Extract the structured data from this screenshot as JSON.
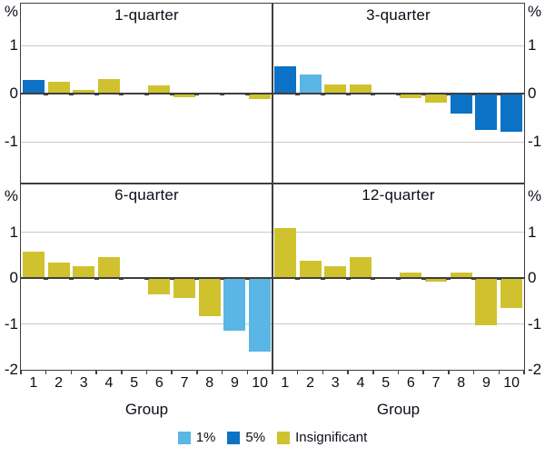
{
  "figure": {
    "y_axis_unit": "%",
    "x_axis_label": "Group",
    "x_tick_labels": [
      "1",
      "2",
      "3",
      "4",
      "5",
      "6",
      "7",
      "8",
      "9",
      "10"
    ],
    "colors": {
      "significance_1pct": "#5ab6e4",
      "significance_5pct": "#0c72c6",
      "insignificant": "#d0c22f",
      "gridline": "#c9c9c9",
      "axis": "#3f3f3f",
      "text": "#0d0d1a",
      "background": "#ffffff"
    },
    "legend": [
      {
        "label": "1%",
        "color_key": "significance_1pct"
      },
      {
        "label": "5%",
        "color_key": "significance_5pct"
      },
      {
        "label": "Insignificant",
        "color_key": "insignificant"
      }
    ]
  },
  "chart_data": [
    {
      "type": "bar",
      "title": "1-quarter",
      "position": "top-left",
      "xlabel": "Group",
      "ylabel": "%",
      "categories": [
        "1",
        "2",
        "3",
        "4",
        "5",
        "6",
        "7",
        "8",
        "9",
        "10"
      ],
      "values": [
        0.29,
        0.24,
        0.07,
        0.31,
        -0.01,
        0.17,
        -0.07,
        -0.02,
        -0.02,
        -0.11
      ],
      "significance": [
        "5%",
        "insignificant",
        "insignificant",
        "insignificant",
        "insignificant",
        "insignificant",
        "insignificant",
        "insignificant",
        "insignificant",
        "insignificant"
      ],
      "ylim": [
        -1.87,
        1.87
      ],
      "yticks": [
        1,
        0,
        -1
      ],
      "grid": true
    },
    {
      "type": "bar",
      "title": "3-quarter",
      "position": "top-right",
      "xlabel": "Group",
      "ylabel": "%",
      "categories": [
        "1",
        "2",
        "3",
        "4",
        "5",
        "6",
        "7",
        "8",
        "9",
        "10"
      ],
      "values": [
        0.57,
        0.4,
        0.18,
        0.18,
        -0.01,
        -0.09,
        -0.19,
        -0.42,
        -0.75,
        -0.8
      ],
      "significance": [
        "5%",
        "1%",
        "insignificant",
        "insignificant",
        "insignificant",
        "insignificant",
        "insignificant",
        "5%",
        "5%",
        "5%"
      ],
      "ylim": [
        -1.87,
        1.87
      ],
      "yticks": [
        1,
        0,
        -1
      ],
      "grid": true
    },
    {
      "type": "bar",
      "title": "6-quarter",
      "position": "bottom-left",
      "xlabel": "Group",
      "ylabel": "%",
      "categories": [
        "1",
        "2",
        "3",
        "4",
        "5",
        "6",
        "7",
        "8",
        "9",
        "10"
      ],
      "values": [
        0.58,
        0.34,
        0.25,
        0.46,
        -0.02,
        -0.35,
        -0.44,
        -0.84,
        -1.15,
        -1.61
      ],
      "significance": [
        "insignificant",
        "insignificant",
        "insignificant",
        "insignificant",
        "insignificant",
        "insignificant",
        "insignificant",
        "insignificant",
        "1%",
        "1%"
      ],
      "ylim": [
        -2.0,
        2.08
      ],
      "yticks": [
        1,
        0,
        -1,
        -2
      ],
      "grid": true
    },
    {
      "type": "bar",
      "title": "12-quarter",
      "position": "bottom-right",
      "xlabel": "Group",
      "ylabel": "%",
      "categories": [
        "1",
        "2",
        "3",
        "4",
        "5",
        "6",
        "7",
        "8",
        "9",
        "10"
      ],
      "values": [
        1.08,
        0.37,
        0.25,
        0.46,
        0.0,
        0.12,
        -0.07,
        0.12,
        -1.02,
        -0.66
      ],
      "significance": [
        "insignificant",
        "insignificant",
        "insignificant",
        "insignificant",
        "insignificant",
        "insignificant",
        "insignificant",
        "insignificant",
        "insignificant",
        "insignificant"
      ],
      "ylim": [
        -2.0,
        2.08
      ],
      "yticks": [
        1,
        0,
        -1,
        -2
      ],
      "grid": true
    }
  ]
}
